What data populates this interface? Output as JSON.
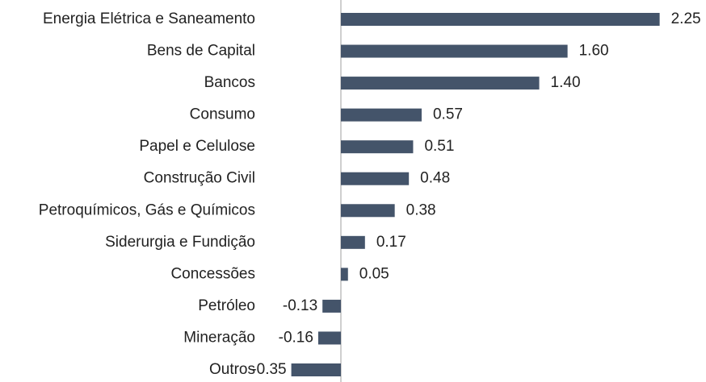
{
  "chart_data": {
    "type": "bar",
    "orientation": "horizontal",
    "categories": [
      "Energia Elétrica e Saneamento",
      "Bens de Capital",
      "Bancos",
      "Consumo",
      "Papel e Celulose",
      "Construção Civil",
      "Petroquímicos, Gás e Químicos",
      "Siderurgia e Fundição",
      "Concessões",
      "Petróleo",
      "Mineração",
      "Outros"
    ],
    "values": [
      2.25,
      1.6,
      1.4,
      0.57,
      0.51,
      0.48,
      0.38,
      0.17,
      0.05,
      -0.13,
      -0.16,
      -0.35
    ],
    "value_labels": [
      "2.25",
      "1.60",
      "1.40",
      "0.57",
      "0.51",
      "0.48",
      "0.38",
      "0.17",
      "0.05",
      "-0.13",
      "-0.16",
      "-0.35"
    ],
    "color": "#44546a"
  }
}
